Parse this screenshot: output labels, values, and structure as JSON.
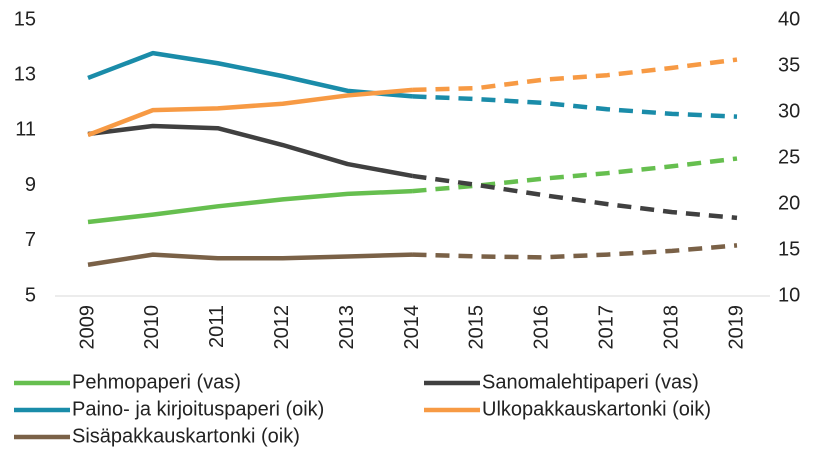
{
  "chart_data": {
    "type": "line",
    "categories": [
      "2009",
      "2010",
      "2011",
      "2012",
      "2013",
      "2014",
      "2015",
      "2016",
      "2017",
      "2018",
      "2019"
    ],
    "forecast_start": "2014",
    "ylim": [
      5,
      15
    ],
    "yticks": [
      5,
      7,
      9,
      11,
      13,
      15
    ],
    "y2lim": [
      10,
      40
    ],
    "y2ticks": [
      10,
      15,
      20,
      25,
      30,
      35,
      40
    ],
    "series": [
      {
        "name": "Pehmopaperi (vas)",
        "color": "#66bf4f",
        "axis": "y",
        "values": [
          7.68,
          7.95,
          8.25,
          8.5,
          8.7,
          8.8,
          9.0,
          9.25,
          9.45,
          9.7,
          9.98
        ]
      },
      {
        "name": "Sanomalehtipaperi (vas)",
        "color": "#404040",
        "axis": "y",
        "values": [
          10.87,
          11.16,
          11.08,
          10.47,
          9.78,
          9.35,
          9.02,
          8.66,
          8.33,
          8.04,
          7.83
        ]
      },
      {
        "name": "Paino- ja kirjoituspaperi (oik)",
        "color": "#1a8ca9",
        "axis": "y2",
        "values": [
          33.7,
          36.4,
          35.3,
          33.9,
          32.3,
          31.7,
          31.4,
          31.0,
          30.3,
          29.8,
          29.5
        ]
      },
      {
        "name": "Ulkopakkauskartonki (oik)",
        "color": "#f79a44",
        "axis": "y2",
        "values": [
          27.5,
          30.2,
          30.4,
          30.9,
          31.8,
          32.4,
          32.6,
          33.5,
          34.0,
          34.8,
          35.7
        ]
      },
      {
        "name": "Sisäpakkauskartonki (oik)",
        "color": "#7a6147",
        "axis": "y2",
        "values": [
          13.4,
          14.5,
          14.1,
          14.1,
          14.3,
          14.5,
          14.3,
          14.2,
          14.5,
          14.9,
          15.5
        ]
      }
    ]
  }
}
